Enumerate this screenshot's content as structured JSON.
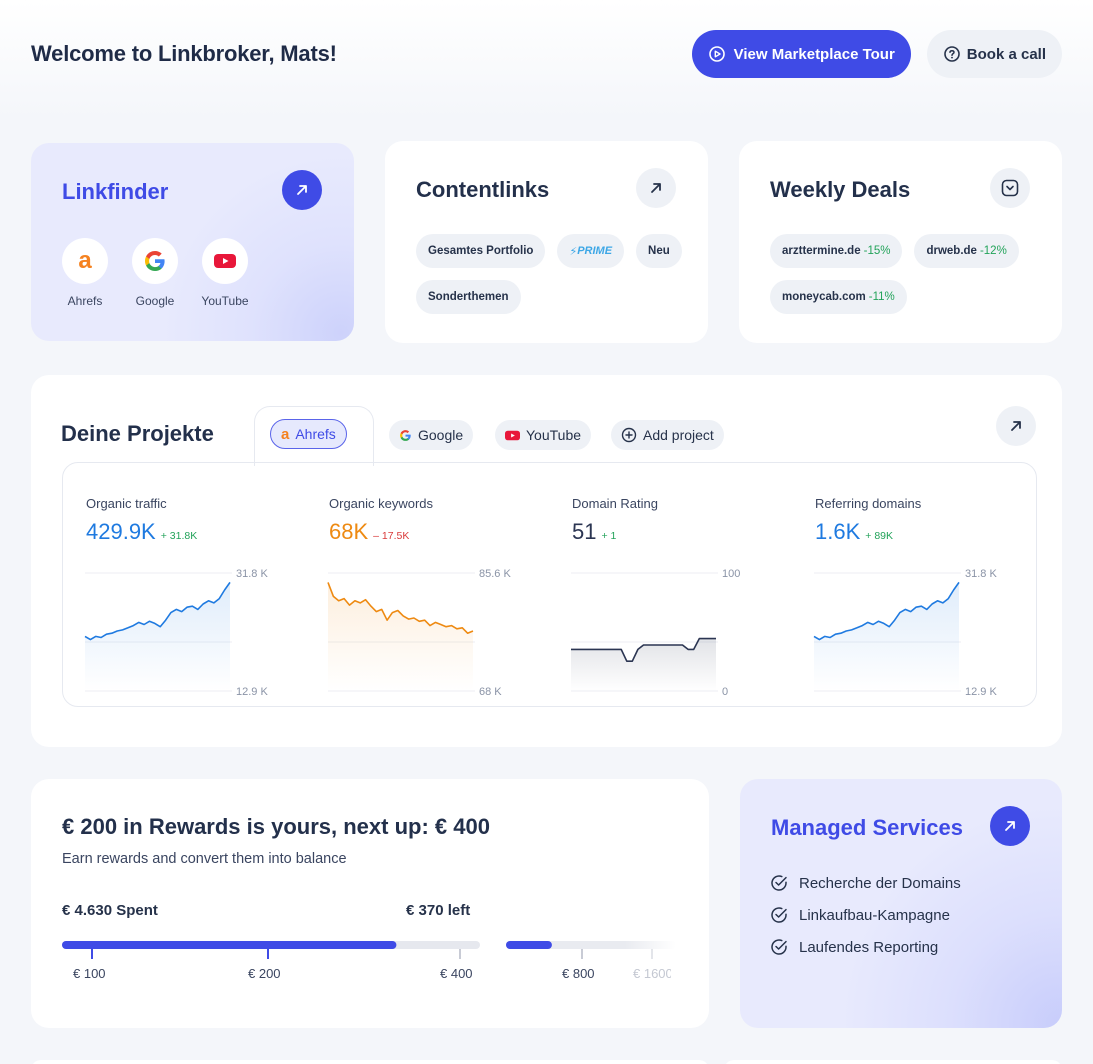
{
  "header": {
    "welcome": "Welcome to Linkbroker, Mats!",
    "tour_label": "View Marketplace Tour",
    "call_label": "Book a call"
  },
  "linkfinder": {
    "title": "Linkfinder",
    "tools": [
      {
        "label": "Ahrefs",
        "icon": "ahrefs-icon"
      },
      {
        "label": "Google",
        "icon": "google-icon"
      },
      {
        "label": "YouTube",
        "icon": "youtube-icon"
      }
    ]
  },
  "contentlinks": {
    "title": "Contentlinks",
    "chips": [
      "Gesamtes Portfolio",
      "PRIME",
      "Neu",
      "Sonderthemen"
    ]
  },
  "weekly_deals": {
    "title": "Weekly Deals",
    "deals": [
      {
        "domain": "arzttermine.de",
        "discount": "-15%"
      },
      {
        "domain": "drweb.de",
        "discount": "-12%"
      },
      {
        "domain": "moneycab.com",
        "discount": "-11%"
      }
    ]
  },
  "projects": {
    "title": "Deine Projekte",
    "tabs": [
      "Ahrefs",
      "Google",
      "YouTube",
      "Add project"
    ],
    "stats": [
      {
        "label": "Organic traffic",
        "value": "429.9K",
        "delta": "+ 31.8K",
        "max_label": "31.8 K",
        "min_label": "12.9 K",
        "color": "#1f7ae0",
        "delta_color": "#23a35a"
      },
      {
        "label": "Organic keywords",
        "value": "68K",
        "delta": "– 17.5K",
        "max_label": "85.6 K",
        "min_label": "68 K",
        "color": "#ee8a12",
        "delta_color": "#d93a3a"
      },
      {
        "label": "Domain Rating",
        "value": "51",
        "delta": "+ 1",
        "max_label": "100",
        "min_label": "0",
        "color": "#2b3552",
        "delta_color": "#23a35a"
      },
      {
        "label": "Referring domains",
        "value": "1.6K",
        "delta": "+ 89K",
        "max_label": "31.8 K",
        "min_label": "12.9 K",
        "color": "#1f7ae0",
        "delta_color": "#23a35a"
      }
    ]
  },
  "rewards": {
    "title": "€ 200 in Rewards is yours, next up: € 400",
    "subtitle": "Earn rewards and convert them into balance",
    "spent": "€ 4.630 Spent",
    "left": "€ 370 left",
    "ticks": [
      "€ 100",
      "€ 200",
      "€ 400",
      "€ 800",
      "€ 1600"
    ],
    "progress_tier1": 0.8,
    "progress_tier2": 0.27
  },
  "managed": {
    "title": "Managed Services",
    "items": [
      "Recherche der Domains",
      "Linkaufbau-Kampagne",
      "Laufendes Reporting"
    ]
  }
}
